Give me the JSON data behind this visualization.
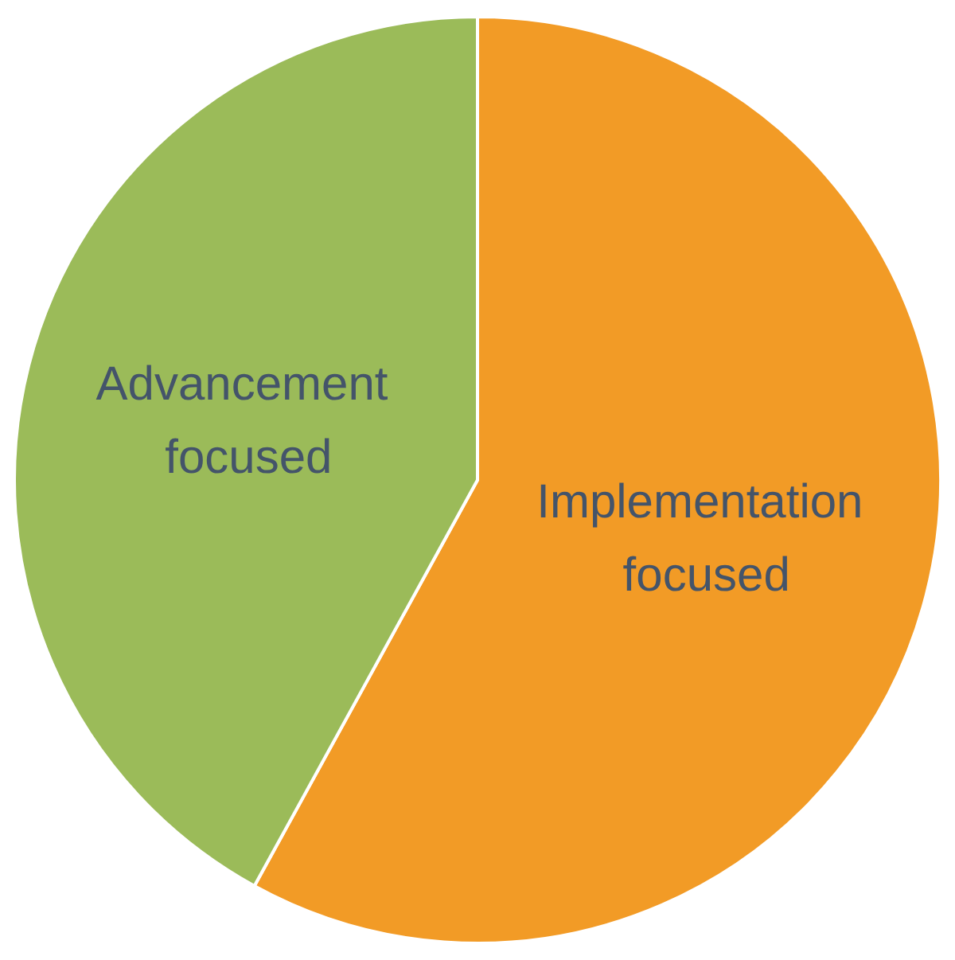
{
  "chart_data": {
    "type": "pie",
    "categories": [
      "Implementation focused",
      "Advancement focused"
    ],
    "values": [
      58,
      42
    ],
    "colors": [
      "#f29b26",
      "#9bbb59"
    ],
    "legend": false
  }
}
